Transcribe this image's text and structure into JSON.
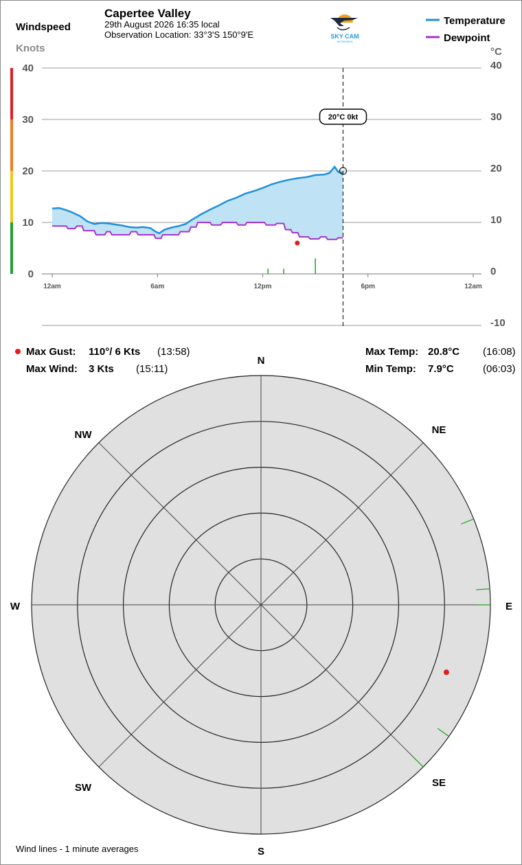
{
  "header": {
    "windspeed_label": "Windspeed",
    "station": "Capertee Valley",
    "date_time": "29th August 2026  16:35 local",
    "location": "Observation Location: 33°3'S 150°9'E",
    "logo_text": "SKY CAM",
    "logo_subtext": "NETWORKS"
  },
  "legend": {
    "temperature": "Temperature",
    "dewpoint": "Dewpoint"
  },
  "colors": {
    "temperature": "#1e8fd8",
    "temperature_fill": "#bfe2f5",
    "dewpoint": "#a830d0",
    "gust_marker": "#e31c1c",
    "wind_bar": "#1aa31a",
    "scale_red": "#dd2020",
    "scale_orange": "#f07c22",
    "scale_yellow": "#f0c818",
    "scale_green": "#20a030",
    "rose_fill": "#e0e0e0"
  },
  "stats": {
    "max_gust_label": "Max Gust:",
    "max_gust_value": "110°/  6 Kts",
    "max_gust_time": "(13:58)",
    "max_wind_label": "Max Wind:",
    "max_wind_value": "3 Kts",
    "max_wind_time": "(15:11)",
    "max_temp_label": "Max Temp:",
    "max_temp_value": "20.8°C",
    "max_temp_time": "(16:08)",
    "min_temp_label": "Min Temp:",
    "min_temp_value": "7.9°C",
    "min_temp_time": "(06:03)"
  },
  "rose": {
    "directions": {
      "N": "N",
      "NE": "NE",
      "E": "E",
      "SE": "SE",
      "S": "S",
      "SW": "SW",
      "W": "W",
      "NW": "NW"
    },
    "footnote": "Wind lines - 1 minute averages"
  },
  "chart_data": {
    "type": "line",
    "left_axis": {
      "label": "Knots",
      "ylim": [
        0,
        40
      ],
      "ticks": [
        "0",
        "10",
        "20",
        "30",
        "40"
      ]
    },
    "right_axis": {
      "label": "°C",
      "ylim": [
        -10,
        40
      ],
      "ticks": [
        "-10",
        "0",
        "10",
        "20",
        "30",
        "40"
      ]
    },
    "x_axis": {
      "xlim_hours": [
        0,
        24
      ],
      "ticks": [
        "12am",
        "6am",
        "12pm",
        "6pm",
        "12am"
      ],
      "tick_hours": [
        0,
        6,
        12,
        18,
        24
      ]
    },
    "grid": true,
    "current_marker": {
      "hour": 16.58,
      "temperature": 20,
      "label": "20°C  0kt"
    },
    "series": [
      {
        "name": "Temperature",
        "unit": "°C",
        "points": [
          [
            0.0,
            12.7
          ],
          [
            0.4,
            12.8
          ],
          [
            0.8,
            12.4
          ],
          [
            1.1,
            12.0
          ],
          [
            1.6,
            11.2
          ],
          [
            2.0,
            10.2
          ],
          [
            2.4,
            9.7
          ],
          [
            2.8,
            9.9
          ],
          [
            3.2,
            9.8
          ],
          [
            3.6,
            9.6
          ],
          [
            4.0,
            9.4
          ],
          [
            4.4,
            9.1
          ],
          [
            4.8,
            9.0
          ],
          [
            5.2,
            9.1
          ],
          [
            5.6,
            8.9
          ],
          [
            5.9,
            8.2
          ],
          [
            6.1,
            7.9
          ],
          [
            6.4,
            8.6
          ],
          [
            6.8,
            9.0
          ],
          [
            7.2,
            9.3
          ],
          [
            7.6,
            9.7
          ],
          [
            8.0,
            10.6
          ],
          [
            8.5,
            11.6
          ],
          [
            9.0,
            12.5
          ],
          [
            9.5,
            13.3
          ],
          [
            10.0,
            14.2
          ],
          [
            10.5,
            14.8
          ],
          [
            11.0,
            15.6
          ],
          [
            11.5,
            16.1
          ],
          [
            12.0,
            16.7
          ],
          [
            12.5,
            17.4
          ],
          [
            13.0,
            17.9
          ],
          [
            13.5,
            18.3
          ],
          [
            14.0,
            18.6
          ],
          [
            14.5,
            18.8
          ],
          [
            15.0,
            19.2
          ],
          [
            15.5,
            19.3
          ],
          [
            15.8,
            19.6
          ],
          [
            16.1,
            20.8
          ],
          [
            16.3,
            19.8
          ],
          [
            16.58,
            19.6
          ]
        ]
      },
      {
        "name": "Dewpoint",
        "unit": "°C",
        "points": [
          [
            0.0,
            9.3
          ],
          [
            0.8,
            9.3
          ],
          [
            0.9,
            8.8
          ],
          [
            1.3,
            8.8
          ],
          [
            1.4,
            9.3
          ],
          [
            1.7,
            9.3
          ],
          [
            1.8,
            8.4
          ],
          [
            2.4,
            8.4
          ],
          [
            2.5,
            7.6
          ],
          [
            3.0,
            7.6
          ],
          [
            3.1,
            8.2
          ],
          [
            3.3,
            8.2
          ],
          [
            3.4,
            7.6
          ],
          [
            4.4,
            7.6
          ],
          [
            4.5,
            8.2
          ],
          [
            4.8,
            8.2
          ],
          [
            4.9,
            7.6
          ],
          [
            5.8,
            7.6
          ],
          [
            5.9,
            6.9
          ],
          [
            6.2,
            6.9
          ],
          [
            6.3,
            7.6
          ],
          [
            7.2,
            7.6
          ],
          [
            7.3,
            8.2
          ],
          [
            7.8,
            8.2
          ],
          [
            7.9,
            9.1
          ],
          [
            8.2,
            9.1
          ],
          [
            8.3,
            10.0
          ],
          [
            9.0,
            10.0
          ],
          [
            9.1,
            9.5
          ],
          [
            9.6,
            9.5
          ],
          [
            9.7,
            10.0
          ],
          [
            10.5,
            10.0
          ],
          [
            10.6,
            9.5
          ],
          [
            11.0,
            9.5
          ],
          [
            11.1,
            10.0
          ],
          [
            12.1,
            10.0
          ],
          [
            12.2,
            9.5
          ],
          [
            12.7,
            9.5
          ],
          [
            12.8,
            9.8
          ],
          [
            13.2,
            9.8
          ],
          [
            13.3,
            8.6
          ],
          [
            13.6,
            8.6
          ],
          [
            13.7,
            8.0
          ],
          [
            14.0,
            8.0
          ],
          [
            14.1,
            7.2
          ],
          [
            14.6,
            7.2
          ],
          [
            14.7,
            6.8
          ],
          [
            15.2,
            6.8
          ],
          [
            15.3,
            7.2
          ],
          [
            15.6,
            7.2
          ],
          [
            15.7,
            6.7
          ],
          [
            16.2,
            6.7
          ],
          [
            16.3,
            7.0
          ],
          [
            16.58,
            7.0
          ]
        ]
      },
      {
        "name": "Wind (Knots)",
        "type": "bar",
        "points": [
          [
            12.3,
            1
          ],
          [
            13.2,
            1
          ],
          [
            15.0,
            3
          ]
        ]
      },
      {
        "name": "Max Gust",
        "type": "scatter",
        "points": [
          [
            13.97,
            6
          ]
        ]
      }
    ],
    "wind_rose": {
      "rings": 5,
      "gust": {
        "direction_deg": 110,
        "speed_kts": 6
      },
      "wind_lines_deg": [
        68,
        86,
        90,
        125,
        135
      ]
    }
  }
}
